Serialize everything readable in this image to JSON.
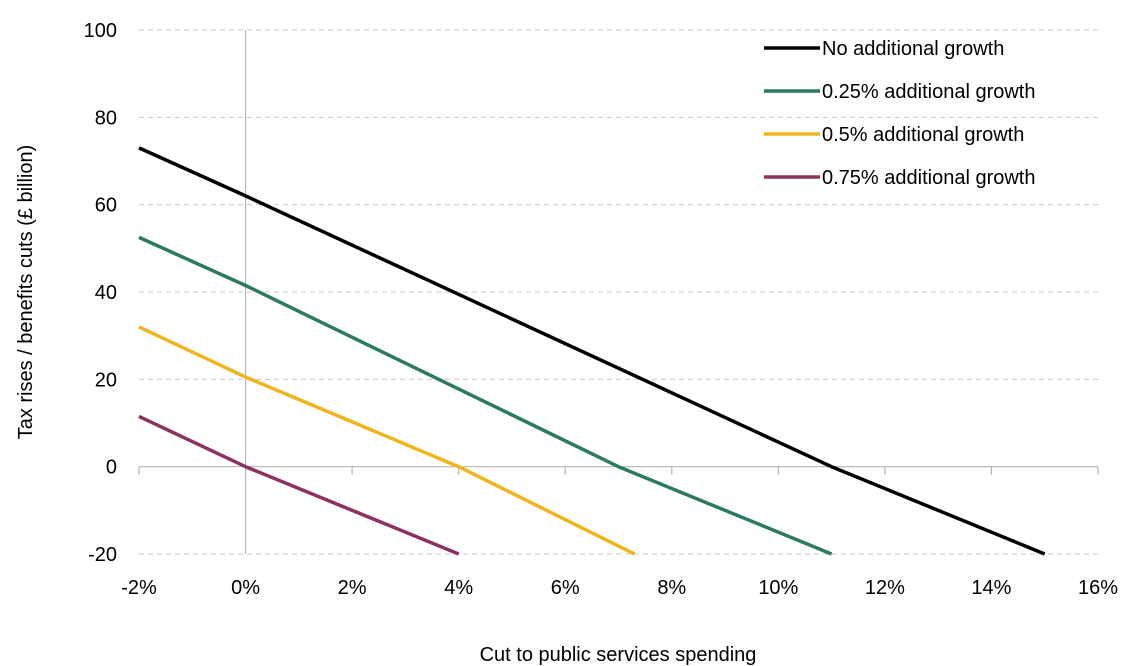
{
  "chart_data": {
    "type": "line",
    "title": "",
    "xlabel": "Cut to public services spending",
    "ylabel": "Tax rises / benefits cuts (£ billion)",
    "xlim": [
      -2,
      16
    ],
    "ylim": [
      -20,
      100
    ],
    "x_ticks": [
      -2,
      0,
      2,
      4,
      6,
      8,
      10,
      12,
      14,
      16
    ],
    "x_tick_labels": [
      "-2%",
      "0%",
      "2%",
      "4%",
      "6%",
      "8%",
      "10%",
      "12%",
      "14%",
      "16%"
    ],
    "y_ticks": [
      -20,
      0,
      20,
      40,
      60,
      80,
      100
    ],
    "y_tick_labels": [
      "-20",
      "0",
      "20",
      "40",
      "60",
      "80",
      "100"
    ],
    "grid": "horizontal dashed",
    "legend_position": "top-right",
    "series": [
      {
        "name": "No additional growth",
        "color": "#000000",
        "points": [
          [
            -2,
            73
          ],
          [
            0,
            62
          ],
          [
            11,
            0
          ],
          [
            15,
            -20
          ]
        ]
      },
      {
        "name": "0.25% additional growth",
        "color": "#2e7a5c",
        "points": [
          [
            -2,
            52.5
          ],
          [
            0,
            41.5
          ],
          [
            7,
            0
          ],
          [
            11,
            -20
          ]
        ]
      },
      {
        "name": "0.5% additional growth",
        "color": "#f0b51e",
        "points": [
          [
            -2,
            32
          ],
          [
            0,
            20.5
          ],
          [
            4,
            0
          ],
          [
            7.3,
            -20
          ]
        ]
      },
      {
        "name": "0.75% additional growth",
        "color": "#8b3260",
        "points": [
          [
            -2,
            11.5
          ],
          [
            0,
            0
          ],
          [
            4,
            -20
          ]
        ]
      }
    ]
  }
}
